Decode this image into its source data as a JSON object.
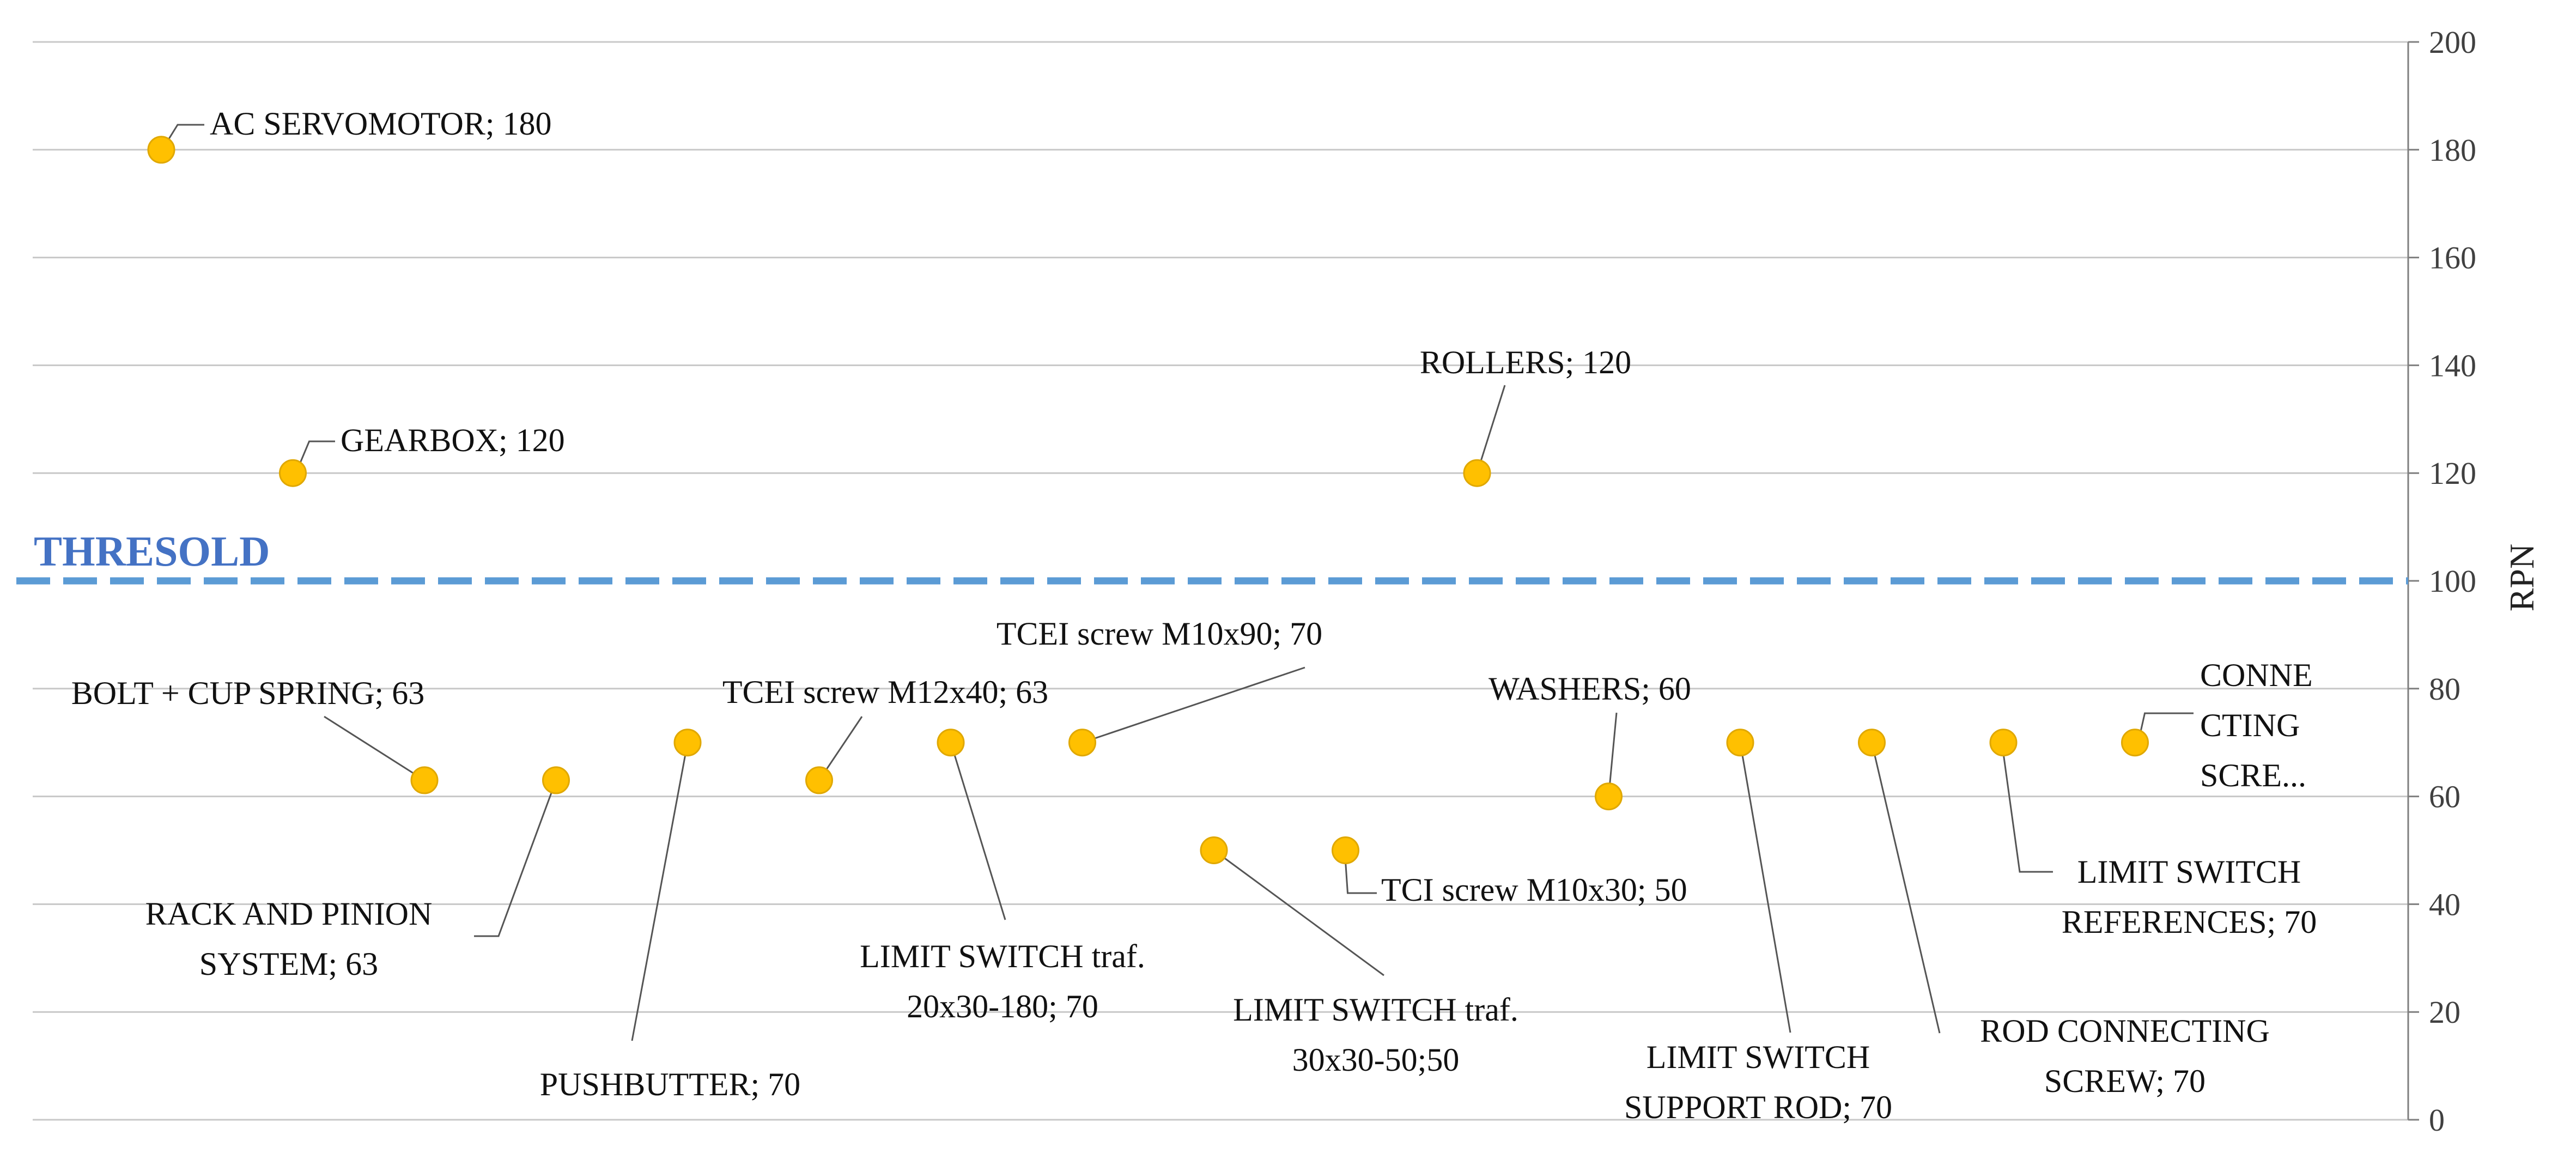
{
  "chart_data": {
    "type": "scatter",
    "title": "",
    "xlabel": "",
    "ylabel": "RPN",
    "ylim": [
      0,
      200
    ],
    "yticks": [
      0,
      20,
      40,
      60,
      80,
      100,
      120,
      140,
      160,
      180,
      200
    ],
    "grid": true,
    "y_axis_side": "right",
    "point_color": "#FFC000",
    "threshold": {
      "label": "THRESOLD",
      "value": 100,
      "color": "#5B9BD5",
      "label_color": "#4472C4"
    },
    "points": [
      {
        "x": 1,
        "y": 180,
        "label": "AC SERVOMOTOR; 180"
      },
      {
        "x": 2,
        "y": 120,
        "label": "GEARBOX; 120"
      },
      {
        "x": 3,
        "y": 63,
        "label": "BOLT + CUP SPRING; 63"
      },
      {
        "x": 4,
        "y": 63,
        "label": [
          "RACK AND PINION",
          "SYSTEM; 63"
        ]
      },
      {
        "x": 5,
        "y": 70,
        "label": "PUSHBUTTER; 70"
      },
      {
        "x": 6,
        "y": 63,
        "label": "TCEI screw M12x40; 63"
      },
      {
        "x": 7,
        "y": 70,
        "label": [
          "LIMIT SWITCH traf.",
          "20x30-180; 70"
        ]
      },
      {
        "x": 8,
        "y": 70,
        "label": "TCEI screw M10x90; 70"
      },
      {
        "x": 9,
        "y": 50,
        "label": [
          "LIMIT SWITCH traf.",
          "30x30-50;50"
        ]
      },
      {
        "x": 10,
        "y": 50,
        "label": "TCI screw M10x30; 50"
      },
      {
        "x": 11,
        "y": 120,
        "label": "ROLLERS; 120"
      },
      {
        "x": 12,
        "y": 60,
        "label": "WASHERS; 60"
      },
      {
        "x": 13,
        "y": 70,
        "label": [
          "LIMIT SWITCH",
          "SUPPORT ROD; 70"
        ]
      },
      {
        "x": 14,
        "y": 70,
        "label": [
          "ROD CONNECTING",
          "SCREW; 70"
        ]
      },
      {
        "x": 15,
        "y": 70,
        "label": [
          "LIMIT SWITCH",
          "REFERENCES; 70"
        ]
      },
      {
        "x": 16,
        "y": 70,
        "label": [
          "CONNE",
          "CTING",
          "SCRE..."
        ]
      }
    ]
  }
}
